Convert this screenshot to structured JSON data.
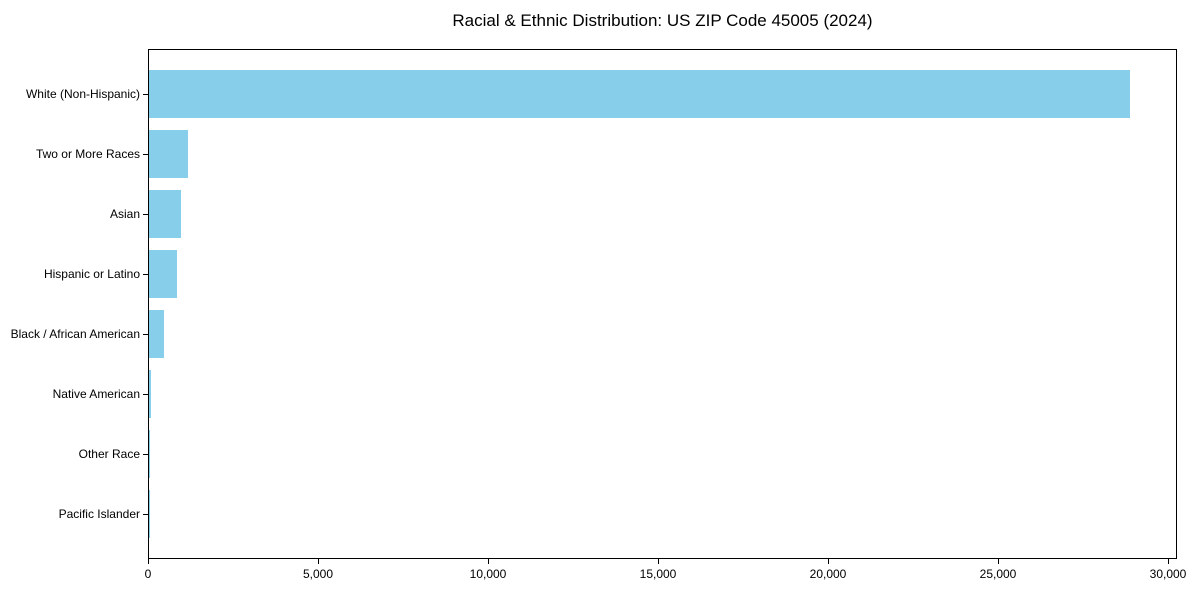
{
  "chart_data": {
    "type": "bar",
    "orientation": "horizontal",
    "title": "Racial & Ethnic Distribution: US ZIP Code 45005 (2024)",
    "categories": [
      "White (Non-Hispanic)",
      "Two or More Races",
      "Asian",
      "Hispanic or Latino",
      "Black / African American",
      "Native American",
      "Other Race",
      "Pacific Islander"
    ],
    "values": [
      28850,
      1150,
      940,
      820,
      440,
      50,
      20,
      10
    ],
    "xlabel": "",
    "ylabel": "",
    "xlim": [
      0,
      30265
    ],
    "xticks": [
      0,
      5000,
      10000,
      15000,
      20000,
      25000,
      30000
    ],
    "xtick_labels": [
      "0",
      "5,000",
      "10,000",
      "15,000",
      "20,000",
      "25,000",
      "30,000"
    ],
    "bar_color": "#87CEEB",
    "grid": false,
    "legend": null,
    "background_color": "#ffffff",
    "frame_color": "#000000"
  }
}
